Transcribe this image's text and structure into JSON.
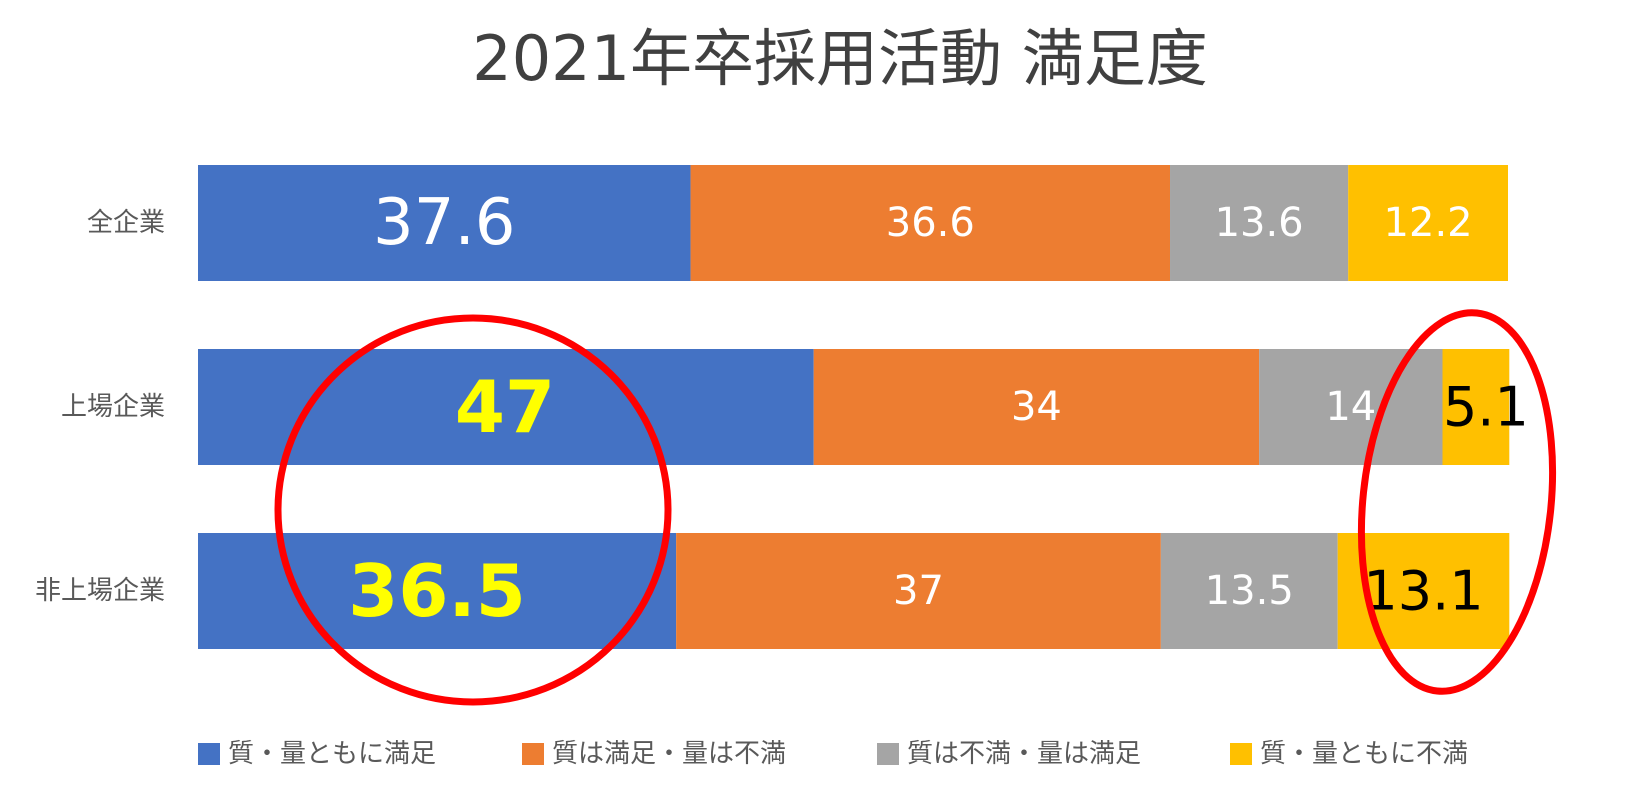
{
  "chart_data": {
    "type": "bar",
    "orientation": "horizontal",
    "stacked": true,
    "title": "2021年卒採用活動 満足度",
    "categories": [
      "全企業",
      "上場企業",
      "非上場企業"
    ],
    "series": [
      {
        "name": "質・量ともに満足",
        "values": [
          37.6,
          47,
          36.5
        ],
        "color": "#4472C4"
      },
      {
        "name": "質は満足・量は不満",
        "values": [
          36.6,
          34,
          37
        ],
        "color": "#ED7D31"
      },
      {
        "name": "質は不満・量は満足",
        "values": [
          13.6,
          14,
          13.5
        ],
        "color": "#A5A5A5"
      },
      {
        "name": "質・量ともに不満",
        "values": [
          12.2,
          5.1,
          13.1
        ],
        "color": "#FFC000"
      }
    ],
    "xlim": [
      0,
      100
    ],
    "grid": false,
    "legend_position": "bottom",
    "highlight_color": "#FFFF00",
    "annotation_color": "#FF0000"
  }
}
